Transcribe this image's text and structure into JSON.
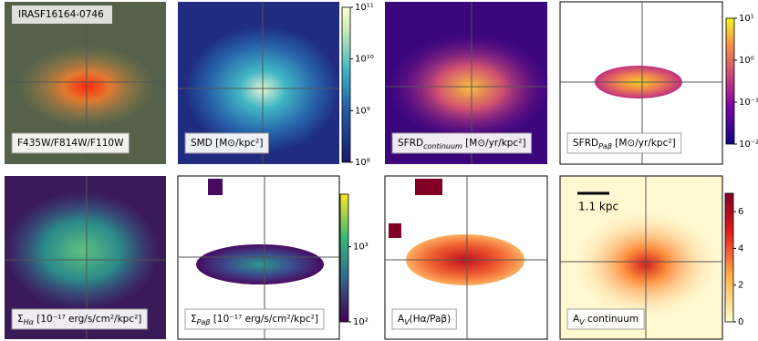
{
  "panels": [
    {
      "title": "IRASF16164-0746",
      "label": {
        "main": "F435W/F814W/F110W"
      }
    },
    {
      "label": {
        "main": "SMD [M⊙/kpc²]"
      },
      "colorbar": {
        "log": true,
        "range": [
          100000000,
          100000000000
        ],
        "ticks": [
          {
            "value": 100000000,
            "label": "10⁸"
          },
          {
            "value": 1000000000,
            "label": "10⁹"
          },
          {
            "value": 10000000000,
            "label": "10¹⁰"
          },
          {
            "value": 100000000000,
            "label": "10¹¹"
          }
        ]
      }
    },
    {
      "label": {
        "main": "SFRD",
        "sub": "continuum",
        "rest": " [M⊙/yr/kpc²]"
      }
    },
    {
      "label": {
        "main": "SFRD",
        "sub": "Paβ",
        "rest": " [M⊙/yr/kpc²]"
      },
      "colorbar": {
        "log": true,
        "range": [
          0.01,
          10
        ],
        "ticks": [
          {
            "value": 0.01,
            "label": "10⁻²"
          },
          {
            "value": 0.1,
            "label": "10⁻¹"
          },
          {
            "value": 1,
            "label": "10⁰"
          },
          {
            "value": 10,
            "label": "10¹"
          }
        ]
      }
    },
    {
      "label": {
        "main": "Σ",
        "sub": "Hα",
        "rest": " [10⁻¹⁷ erg/s/cm²/kpc²]"
      }
    },
    {
      "label": {
        "main": "Σ",
        "sub": "Paβ",
        "rest": " [10⁻¹⁷ erg/s/cm²/kpc²]"
      },
      "colorbar": {
        "log": true,
        "range": [
          100,
          5000
        ],
        "ticks": [
          {
            "value": 100,
            "label": "10²"
          },
          {
            "value": 1000,
            "label": "10³"
          }
        ]
      }
    },
    {
      "label": {
        "main": "A",
        "sub": "V",
        "rest": "(Hα/Paβ)"
      }
    },
    {
      "label": {
        "main": "A",
        "sub": "V",
        "rest": " continuum"
      },
      "scale_bar": "1.1 kpc",
      "colorbar": {
        "log": false,
        "range": [
          0,
          7
        ],
        "ticks": [
          0,
          2,
          4,
          6
        ]
      }
    }
  ]
}
